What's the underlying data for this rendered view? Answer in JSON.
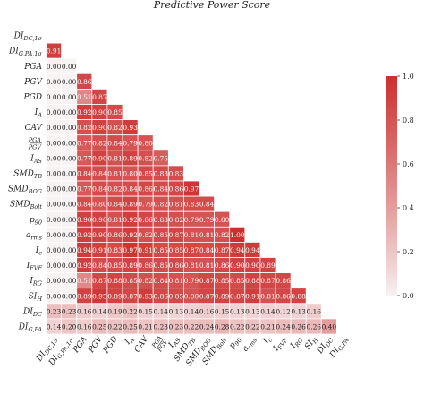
{
  "chart_data": {
    "type": "heatmap",
    "title": "Predictive Power Score",
    "row_labels": [
      "DI_DC,1σ",
      "DI_G,PA,1σ",
      "PGA",
      "PGV",
      "PGD",
      "I_A",
      "CAV",
      "PGA/PGV",
      "I_AS",
      "SMD_TB",
      "SMD_BOG",
      "SMD_Bolt",
      "p_90",
      "a_rms",
      "I_c",
      "I_FVF",
      "I_RG",
      "SI_H",
      "DI_DC",
      "DI_G,PA"
    ],
    "col_labels": [
      "DI_DC,1σ",
      "DI_G,PA,1σ",
      "PGA",
      "PGV",
      "PGD",
      "I_A",
      "CAV",
      "PGA/PGV",
      "I_AS",
      "SMD_TB",
      "SMD_BOG",
      "SMD_Bolt",
      "p_90",
      "a_rms",
      "I_c",
      "I_FVF",
      "I_RG",
      "SI_H",
      "DI_DC",
      "DI_G,PA"
    ],
    "values": [
      [],
      [
        "0.91"
      ],
      [
        "0.00",
        "0.00"
      ],
      [
        "0.00",
        "0.00",
        "0.86"
      ],
      [
        "0.00",
        "0.00",
        "0.51",
        "0.87"
      ],
      [
        "0.00",
        "0.00",
        "0.92",
        "0.90",
        "0.85"
      ],
      [
        "0.00",
        "0.00",
        "0.82",
        "0.90",
        "0.82",
        "0.93"
      ],
      [
        "0.00",
        "0.00",
        "0.77",
        "0.82",
        "0.84",
        "0.79",
        "0.80"
      ],
      [
        "0.00",
        "0.00",
        "0.77",
        "0.90",
        "0.81",
        "0.89",
        "0.82",
        "0.75"
      ],
      [
        "0.00",
        "0.00",
        "0.84",
        "0.84",
        "0.81",
        "0.80",
        "0.85",
        "0.83",
        "0.83"
      ],
      [
        "0.00",
        "0.00",
        "0.77",
        "0.84",
        "0.82",
        "0.84",
        "0.86",
        "0.84",
        "0.86",
        "0.97"
      ],
      [
        "0.00",
        "0.00",
        "0.84",
        "0.80",
        "0.84",
        "0.89",
        "0.79",
        "0.82",
        "0.81",
        "0.83",
        "0.84"
      ],
      [
        "0.00",
        "0.00",
        "0.90",
        "0.90",
        "0.81",
        "0.92",
        "0.86",
        "0.83",
        "0.82",
        "0.79",
        "0.79",
        "0.80"
      ],
      [
        "0.00",
        "0.00",
        "0.92",
        "0.90",
        "0.86",
        "0.92",
        "0.82",
        "0.85",
        "0.87",
        "0.81",
        "0.81",
        "0.82",
        "1.00"
      ],
      [
        "0.00",
        "0.00",
        "0.94",
        "0.91",
        "0.83",
        "0.97",
        "0.91",
        "0.85",
        "0.85",
        "0.87",
        "0.84",
        "0.87",
        "0.94",
        "0.94"
      ],
      [
        "0.00",
        "0.00",
        "0.92",
        "0.84",
        "0.85",
        "0.89",
        "0.86",
        "0.85",
        "0.86",
        "0.81",
        "0.81",
        "0.86",
        "0.90",
        "0.90",
        "0.89"
      ],
      [
        "0.00",
        "0.00",
        "0.51",
        "0.87",
        "0.88",
        "0.85",
        "0.82",
        "0.84",
        "0.81",
        "0.79",
        "0.87",
        "0.85",
        "0.85",
        "0.88",
        "0.87",
        "0.86"
      ],
      [
        "0.00",
        "0.00",
        "0.89",
        "0.95",
        "0.89",
        "0.87",
        "0.93",
        "0.86",
        "0.85",
        "0.80",
        "0.87",
        "0.89",
        "0.87",
        "0.91",
        "0.81",
        "0.86",
        "0.88"
      ],
      [
        "0.23",
        "0.23",
        "0.16",
        "0.14",
        "0.19",
        "0.22",
        "0.15",
        "0.14",
        "0.13",
        "0.14",
        "0.16",
        "0.15",
        "0.13",
        "0.13",
        "0.14",
        "0.12",
        "0.13",
        "0.16"
      ],
      [
        "0.14",
        "0.20",
        "0.16",
        "0.25",
        "0.22",
        "0.25",
        "0.21",
        "0.23",
        "0.23",
        "0.22",
        "0.24",
        "0.28",
        "0.22",
        "0.22",
        "0.21",
        "0.24",
        "0.26",
        "0.26",
        "0.40"
      ]
    ],
    "colorbar": {
      "min": 0.0,
      "max": 1.0,
      "ticks": [
        "0.0",
        "0.2",
        "0.4",
        "0.6",
        "0.8",
        "1.0"
      ]
    },
    "colors": {
      "low": "#f7f3f3",
      "high": "#cd2f2f",
      "grid_line": "#ffffff"
    }
  }
}
